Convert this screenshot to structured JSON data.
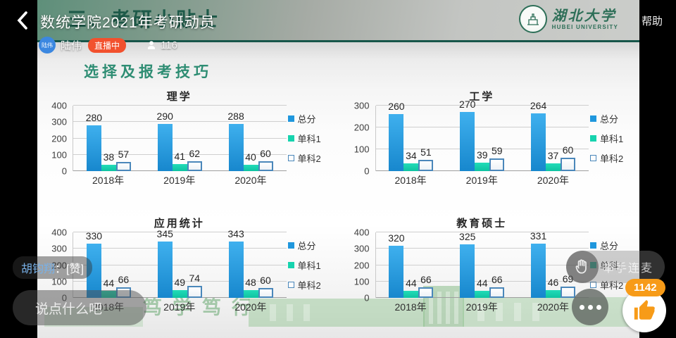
{
  "colors": {
    "series_total": "#1f97dd",
    "series_sub1": "#16d3ae",
    "series_sub2_border": "#4a87ba",
    "live_badge": "#f2512e",
    "like_orange": "#f79b18",
    "slide_title_green": "#2e8d73",
    "university_green": "#2e6f58"
  },
  "topbar": {
    "back_icon": "chevron-left",
    "room_title": "数统学院2021年考研动员",
    "help_label": "帮助"
  },
  "presenter": {
    "avatar_text": "陆伟",
    "name": "陆伟",
    "live_badge_label": "直播中",
    "viewers_icon": "person",
    "viewer_count": "116"
  },
  "slide": {
    "occluded_heading": "三、考研小贴士",
    "title": "选择及报考技巧",
    "logo_cn": "湖北大学",
    "logo_en": "HUBEI UNIVERSITY",
    "watermark": "笃学笃行"
  },
  "chart_data": [
    {
      "type": "bar",
      "title": "理学",
      "categories": [
        "2018年",
        "2019年",
        "2020年"
      ],
      "series": [
        {
          "name": "总分",
          "values": [
            280,
            290,
            288
          ]
        },
        {
          "name": "单科1",
          "values": [
            38,
            41,
            40
          ]
        },
        {
          "name": "单科2",
          "values": [
            57,
            62,
            60
          ]
        }
      ],
      "ylim": [
        0,
        400
      ],
      "yticks": [
        0,
        100,
        200,
        300,
        400
      ],
      "grid": true,
      "legend_position": "right"
    },
    {
      "type": "bar",
      "title": "工学",
      "categories": [
        "2018年",
        "2019年",
        "2020年"
      ],
      "series": [
        {
          "name": "总分",
          "values": [
            260,
            270,
            264
          ]
        },
        {
          "name": "单科1",
          "values": [
            34,
            39,
            37
          ]
        },
        {
          "name": "单科2",
          "values": [
            51,
            59,
            60
          ]
        }
      ],
      "ylim": [
        0,
        300
      ],
      "yticks": [
        0,
        100,
        200,
        300
      ],
      "grid": true,
      "legend_position": "right"
    },
    {
      "type": "bar",
      "title": "应用统计",
      "categories": [
        "2018年",
        "2019年",
        "2020年"
      ],
      "series": [
        {
          "name": "总分",
          "values": [
            330,
            345,
            343
          ]
        },
        {
          "name": "单科1",
          "values": [
            44,
            49,
            48
          ]
        },
        {
          "name": "单科2",
          "values": [
            66,
            74,
            60
          ]
        }
      ],
      "ylim": [
        0,
        400
      ],
      "yticks": [
        0,
        100,
        200,
        300,
        400
      ],
      "grid": true,
      "legend_position": "right"
    },
    {
      "type": "bar",
      "title": "教育硕士",
      "categories": [
        "2018年",
        "2019年",
        "2020年"
      ],
      "series": [
        {
          "name": "总分",
          "values": [
            320,
            325,
            331
          ]
        },
        {
          "name": "单科1",
          "values": [
            44,
            44,
            46
          ]
        },
        {
          "name": "单科2",
          "values": [
            66,
            66,
            69
          ]
        }
      ],
      "ylim": [
        0,
        400
      ],
      "yticks": [
        0,
        100,
        200,
        300,
        400
      ],
      "grid": true,
      "legend_position": "right"
    }
  ],
  "chat": {
    "message_author": "胡钧翔",
    "message_separator": "：",
    "message_text": "[赞]",
    "input_placeholder": "说点什么吧"
  },
  "actions": {
    "raise_hand_icon": "raised-hand",
    "raise_hand_label": "举手连麦",
    "more_icon": "ellipsis",
    "like_icon": "thumbs-up",
    "like_count": "1142"
  }
}
